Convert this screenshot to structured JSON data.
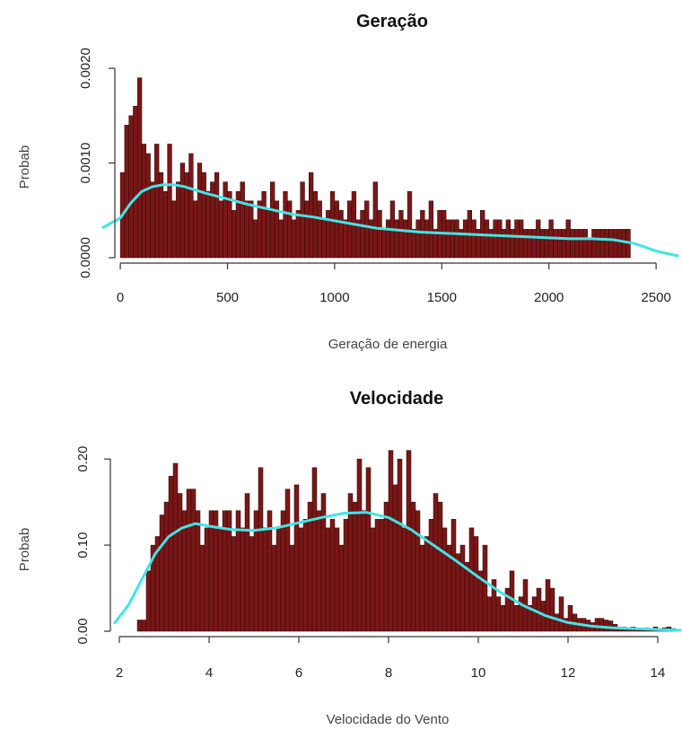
{
  "chart_data": [
    {
      "type": "bar",
      "title": "Geração",
      "xlabel": "Geração de energia",
      "ylabel": "Probab",
      "xlim": [
        -80,
        2600
      ],
      "ylim": [
        0,
        0.0022
      ],
      "x_ticks": [
        0,
        500,
        1000,
        1500,
        2000,
        2500
      ],
      "x_tick_labels": [
        "0",
        "500",
        "1000",
        "1500",
        "2000",
        "2500"
      ],
      "y_ticks": [
        0,
        0.001,
        0.002
      ],
      "y_tick_labels": [
        "0.0000",
        "0.0010",
        "0.0020"
      ],
      "bin_start": 0,
      "bin_width": 20,
      "values": [
        0.0009,
        0.0014,
        0.0015,
        0.0016,
        0.0019,
        0.0012,
        0.0011,
        0.0008,
        0.0012,
        0.0009,
        0.0007,
        0.0012,
        0.0006,
        0.0008,
        0.001,
        0.0009,
        0.0011,
        0.0006,
        0.001,
        0.0009,
        0.0007,
        0.0008,
        0.0009,
        0.0006,
        0.0008,
        0.0007,
        0.0005,
        0.0007,
        0.0008,
        0.0006,
        0.0006,
        0.0004,
        0.0006,
        0.0007,
        0.0005,
        0.0008,
        0.0006,
        0.0004,
        0.0007,
        0.0006,
        0.0004,
        0.0005,
        0.0008,
        0.0006,
        0.0009,
        0.0007,
        0.0006,
        0.0004,
        0.0005,
        0.0007,
        0.0006,
        0.0005,
        0.0004,
        0.0006,
        0.0007,
        0.0004,
        0.0005,
        0.0006,
        0.0004,
        0.0008,
        0.0005,
        0.0003,
        0.0004,
        0.0006,
        0.0004,
        0.0005,
        0.0004,
        0.0007,
        0.0003,
        0.0004,
        0.0005,
        0.0004,
        0.0006,
        0.0003,
        0.0005,
        0.0005,
        0.0004,
        0.0004,
        0.0004,
        0.0003,
        0.0004,
        0.0005,
        0.0004,
        0.0003,
        0.0005,
        0.0004,
        0.0003,
        0.0004,
        0.0004,
        0.0003,
        0.0004,
        0.0003,
        0.0004,
        0.0004,
        0.0003,
        0.0003,
        0.0003,
        0.0004,
        0.0003,
        0.0003,
        0.0004,
        0.0003,
        0.0003,
        0.0003,
        0.0004,
        0.0003,
        0.0003,
        0.0003,
        0.0003,
        0.0002,
        0.0003,
        0.0003,
        0.0003,
        0.0003,
        0.0003,
        0.0003,
        0.0003,
        0.0003,
        0.0003
      ],
      "density_curve": {
        "x": [
          -80,
          0,
          50,
          100,
          150,
          200,
          250,
          300,
          400,
          500,
          600,
          700,
          800,
          900,
          1000,
          1100,
          1200,
          1300,
          1400,
          1500,
          1600,
          1700,
          1800,
          1900,
          2000,
          2100,
          2200,
          2300,
          2400,
          2500,
          2600
        ],
        "y": [
          0.00032,
          0.00042,
          0.00058,
          0.0007,
          0.00075,
          0.00077,
          0.00077,
          0.00075,
          0.00068,
          0.00062,
          0.00056,
          0.00051,
          0.00046,
          0.00043,
          0.00039,
          0.00035,
          0.00031,
          0.00029,
          0.00027,
          0.00026,
          0.00025,
          0.00024,
          0.00023,
          0.00022,
          0.00021,
          0.0002,
          0.0002,
          0.00019,
          0.00015,
          7e-05,
          2e-05
        ]
      }
    },
    {
      "type": "bar",
      "title": "Velocidade",
      "xlabel": "Velocidade do Vento",
      "ylabel": "Probab",
      "xlim": [
        1.9,
        14.5
      ],
      "ylim": [
        0,
        0.22
      ],
      "x_ticks": [
        2,
        4,
        6,
        8,
        10,
        12,
        14
      ],
      "x_tick_labels": [
        "2",
        "4",
        "6",
        "8",
        "10",
        "12",
        "14"
      ],
      "y_ticks": [
        0,
        0.1,
        0.2
      ],
      "y_tick_labels": [
        "0.00",
        "0.10",
        "0.20"
      ],
      "bin_start": 2.4,
      "bin_width": 0.1,
      "values": [
        0.013,
        0.013,
        0.07,
        0.1,
        0.11,
        0.135,
        0.15,
        0.18,
        0.195,
        0.16,
        0.14,
        0.165,
        0.165,
        0.14,
        0.1,
        0.12,
        0.14,
        0.14,
        0.12,
        0.14,
        0.14,
        0.11,
        0.14,
        0.12,
        0.16,
        0.11,
        0.14,
        0.19,
        0.12,
        0.14,
        0.1,
        0.12,
        0.14,
        0.165,
        0.1,
        0.17,
        0.12,
        0.13,
        0.15,
        0.19,
        0.14,
        0.16,
        0.12,
        0.13,
        0.12,
        0.1,
        0.13,
        0.16,
        0.15,
        0.2,
        0.14,
        0.19,
        0.12,
        0.13,
        0.13,
        0.15,
        0.21,
        0.17,
        0.2,
        0.12,
        0.21,
        0.15,
        0.14,
        0.1,
        0.11,
        0.13,
        0.16,
        0.15,
        0.12,
        0.1,
        0.13,
        0.09,
        0.1,
        0.08,
        0.12,
        0.11,
        0.07,
        0.1,
        0.04,
        0.06,
        0.04,
        0.03,
        0.05,
        0.07,
        0.03,
        0.04,
        0.06,
        0.03,
        0.04,
        0.05,
        0.035,
        0.06,
        0.05,
        0.02,
        0.04,
        0.015,
        0.03,
        0.02,
        0.015,
        0.015,
        0.013,
        0.01,
        0.015,
        0.015,
        0.013,
        0.012,
        0.008,
        0.005,
        0.005,
        0.004,
        0.005,
        0.004,
        0.003,
        0.004,
        0.003,
        0.005,
        0.003,
        0.004,
        0.005,
        0.003
      ],
      "density_curve": {
        "x": [
          1.9,
          2.2,
          2.5,
          2.8,
          3.1,
          3.4,
          3.7,
          4.0,
          4.5,
          5.0,
          5.5,
          6.0,
          6.5,
          7.0,
          7.5,
          8.0,
          8.5,
          9.0,
          9.5,
          10.0,
          10.5,
          11.0,
          11.5,
          12.0,
          12.5,
          13.0,
          13.5,
          14.0,
          14.5
        ],
        "y": [
          0.01,
          0.03,
          0.06,
          0.09,
          0.11,
          0.12,
          0.125,
          0.122,
          0.118,
          0.117,
          0.12,
          0.126,
          0.132,
          0.137,
          0.138,
          0.132,
          0.118,
          0.1,
          0.082,
          0.063,
          0.045,
          0.03,
          0.018,
          0.01,
          0.006,
          0.004,
          0.003,
          0.002,
          0.001
        ]
      }
    }
  ]
}
